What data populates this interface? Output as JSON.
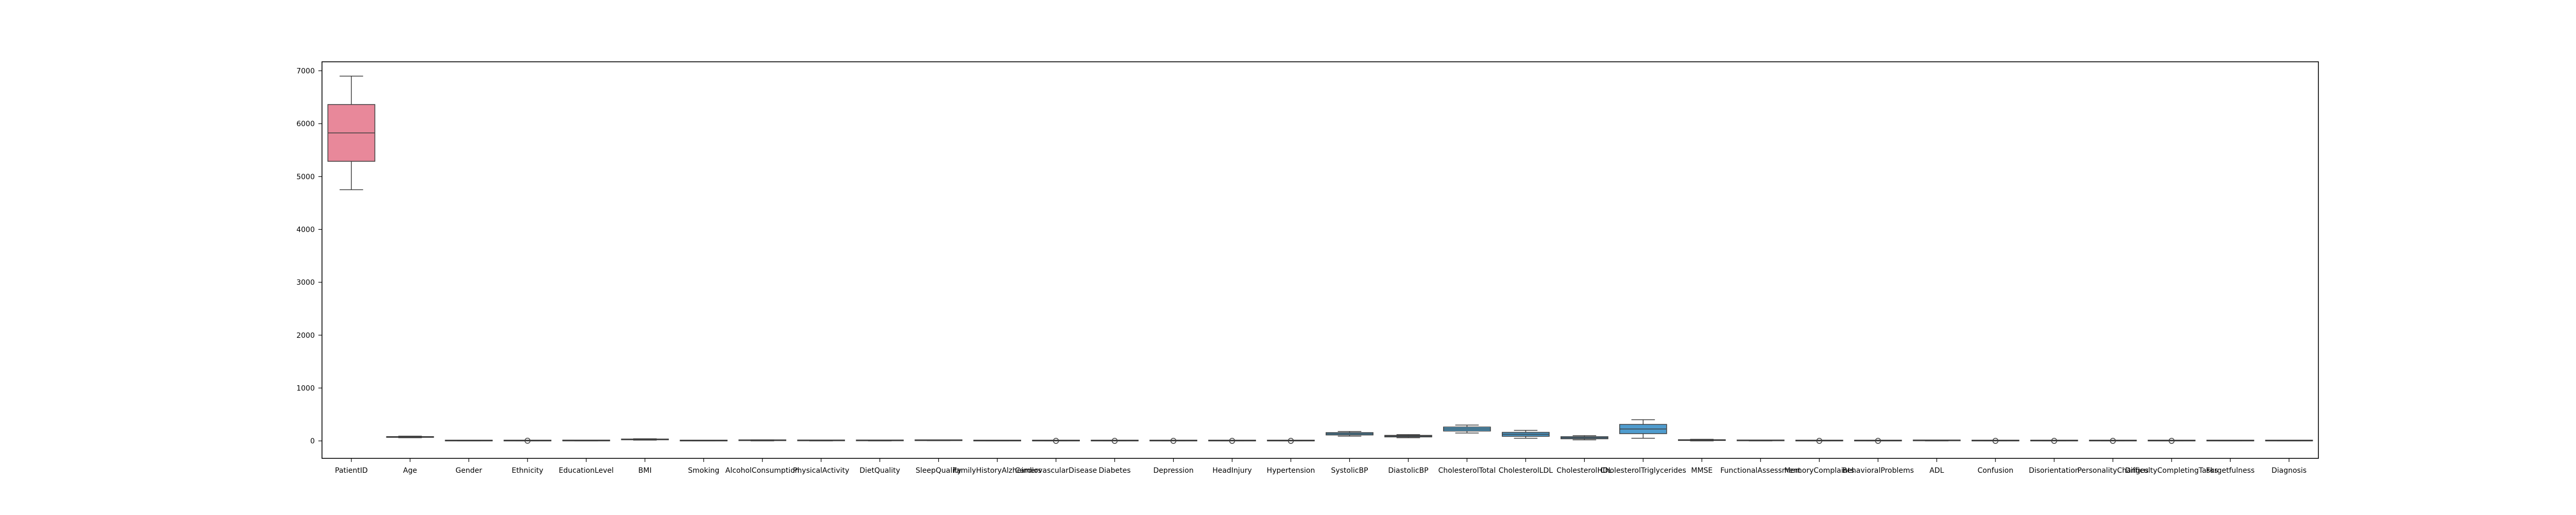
{
  "chart_data": {
    "type": "box",
    "title": "",
    "xlabel": "",
    "ylabel": "",
    "ylim": [
      -330,
      7170
    ],
    "yticks": [
      0,
      1000,
      2000,
      3000,
      4000,
      5000,
      6000,
      7000
    ],
    "ytick_labels": [
      "0",
      "1000",
      "2000",
      "3000",
      "4000",
      "5000",
      "6000",
      "7000"
    ],
    "grid": false,
    "legend": "none",
    "categories": [
      "PatientID",
      "Age",
      "Gender",
      "Ethnicity",
      "EducationLevel",
      "BMI",
      "Smoking",
      "AlcoholConsumption",
      "PhysicalActivity",
      "DietQuality",
      "SleepQuality",
      "FamilyHistoryAlzheimers",
      "CardiovascularDisease",
      "Diabetes",
      "Depression",
      "HeadInjury",
      "Hypertension",
      "SystolicBP",
      "DiastolicBP",
      "CholesterolTotal",
      "CholesterolLDL",
      "CholesterolHDL",
      "CholesterolTriglycerides",
      "MMSE",
      "FunctionalAssessment",
      "MemoryComplaints",
      "BehavioralProblems",
      "ADL",
      "Confusion",
      "Disorientation",
      "PersonalityChanges",
      "DifficultyCompletingTasks",
      "Forgetfulness",
      "Diagnosis"
    ],
    "boxes": [
      {
        "whislo": 4751,
        "q1": 5288,
        "med": 5825,
        "q3": 6362,
        "whishi": 6900,
        "fliers": [],
        "color": "#e8889a"
      },
      {
        "whislo": 60,
        "q1": 67,
        "med": 75,
        "q3": 82,
        "whishi": 90,
        "fliers": [],
        "color": "#e38b6e"
      },
      {
        "whislo": 0,
        "q1": 0,
        "med": 1,
        "q3": 1,
        "whishi": 1,
        "fliers": [],
        "color": "#d79a5b"
      },
      {
        "whislo": 0,
        "q1": 0,
        "med": 0,
        "q3": 1,
        "whishi": 2,
        "fliers": [
          3
        ],
        "color": "#c9a351"
      },
      {
        "whislo": 0,
        "q1": 1,
        "med": 1,
        "q3": 2,
        "whishi": 3,
        "fliers": [],
        "color": "#b8ab51"
      },
      {
        "whislo": 15,
        "q1": 21,
        "med": 27,
        "q3": 33,
        "whishi": 40,
        "fliers": [],
        "color": "#a3b157"
      },
      {
        "whislo": 0,
        "q1": 0,
        "med": 0,
        "q3": 1,
        "whishi": 1,
        "fliers": [],
        "color": "#8bb65e"
      },
      {
        "whislo": 0,
        "q1": 5,
        "med": 10,
        "q3": 15,
        "whishi": 20,
        "fliers": [],
        "color": "#6dba68"
      },
      {
        "whislo": 0,
        "q1": 2.5,
        "med": 5,
        "q3": 7.5,
        "whishi": 10,
        "fliers": [],
        "color": "#56bb7d"
      },
      {
        "whislo": 0,
        "q1": 2.5,
        "med": 5,
        "q3": 7.5,
        "whishi": 10,
        "fliers": [],
        "color": "#52ba91"
      },
      {
        "whislo": 4,
        "q1": 5.5,
        "med": 7,
        "q3": 8.5,
        "whishi": 10,
        "fliers": [],
        "color": "#55b9a1"
      },
      {
        "whislo": 0,
        "q1": 0,
        "med": 0,
        "q3": 0,
        "whishi": 1,
        "fliers": [],
        "color": "#58b8ae"
      },
      {
        "whislo": 0,
        "q1": 0,
        "med": 0,
        "q3": 0,
        "whishi": 0,
        "fliers": [
          1
        ],
        "color": "#5ab6ba"
      },
      {
        "whislo": 0,
        "q1": 0,
        "med": 0,
        "q3": 0,
        "whishi": 0,
        "fliers": [
          1
        ],
        "color": "#5cb5c6"
      },
      {
        "whislo": 0,
        "q1": 0,
        "med": 0,
        "q3": 0,
        "whishi": 0,
        "fliers": [
          1
        ],
        "color": "#5fb3d2"
      },
      {
        "whislo": 0,
        "q1": 0,
        "med": 0,
        "q3": 0,
        "whishi": 0,
        "fliers": [
          1
        ],
        "color": "#63b0de"
      },
      {
        "whislo": 0,
        "q1": 0,
        "med": 0,
        "q3": 0,
        "whishi": 0,
        "fliers": [
          1
        ],
        "color": "#6dabea"
      },
      {
        "whislo": 90,
        "q1": 112,
        "med": 134,
        "q3": 157,
        "whishi": 179,
        "fliers": [],
        "color": "#4a9cc8"
      },
      {
        "whislo": 60,
        "q1": 75,
        "med": 91,
        "q3": 105,
        "whishi": 119,
        "fliers": [],
        "color": "#4f95c0"
      },
      {
        "whislo": 150,
        "q1": 187,
        "med": 225,
        "q3": 262,
        "whishi": 300,
        "fliers": [],
        "color": "#4c9bc6"
      },
      {
        "whislo": 50,
        "q1": 87,
        "med": 125,
        "q3": 162,
        "whishi": 200,
        "fliers": [],
        "color": "#4a95c3"
      },
      {
        "whislo": 20,
        "q1": 40,
        "med": 60,
        "q3": 80,
        "whishi": 100,
        "fliers": [],
        "color": "#4d8eb8"
      },
      {
        "whislo": 50,
        "q1": 137,
        "med": 225,
        "q3": 312,
        "whishi": 400,
        "fliers": [],
        "color": "#4f9cce"
      },
      {
        "whislo": 0,
        "q1": 7.5,
        "med": 15,
        "q3": 22.5,
        "whishi": 30,
        "fliers": [],
        "color": "#8a96e0"
      },
      {
        "whislo": 0,
        "q1": 2.5,
        "med": 5,
        "q3": 7.5,
        "whishi": 10,
        "fliers": [],
        "color": "#a48fe3"
      },
      {
        "whislo": 0,
        "q1": 0,
        "med": 0,
        "q3": 0,
        "whishi": 0,
        "fliers": [
          1
        ],
        "color": "#b887e0"
      },
      {
        "whislo": 0,
        "q1": 0,
        "med": 0,
        "q3": 0,
        "whishi": 0,
        "fliers": [
          1
        ],
        "color": "#c780d8"
      },
      {
        "whislo": 0,
        "q1": 2.5,
        "med": 5,
        "q3": 7.5,
        "whishi": 10,
        "fliers": [],
        "color": "#d47bcd"
      },
      {
        "whislo": 0,
        "q1": 0,
        "med": 0,
        "q3": 0,
        "whishi": 0,
        "fliers": [
          1
        ],
        "color": "#de7ac0"
      },
      {
        "whislo": 0,
        "q1": 0,
        "med": 0,
        "q3": 0,
        "whishi": 0,
        "fliers": [
          1
        ],
        "color": "#e37bb2"
      },
      {
        "whislo": 0,
        "q1": 0,
        "med": 0,
        "q3": 0,
        "whishi": 0,
        "fliers": [
          1
        ],
        "color": "#e67fa5"
      },
      {
        "whislo": 0,
        "q1": 0,
        "med": 0,
        "q3": 0,
        "whishi": 0,
        "fliers": [
          1
        ],
        "color": "#e88399"
      },
      {
        "whislo": 0,
        "q1": 0,
        "med": 0,
        "q3": 1,
        "whishi": 1,
        "fliers": [],
        "color": "#e9868f"
      },
      {
        "whislo": 0,
        "q1": 0,
        "med": 0,
        "q3": 1,
        "whishi": 1,
        "fliers": [],
        "color": "#e98786"
      }
    ]
  }
}
